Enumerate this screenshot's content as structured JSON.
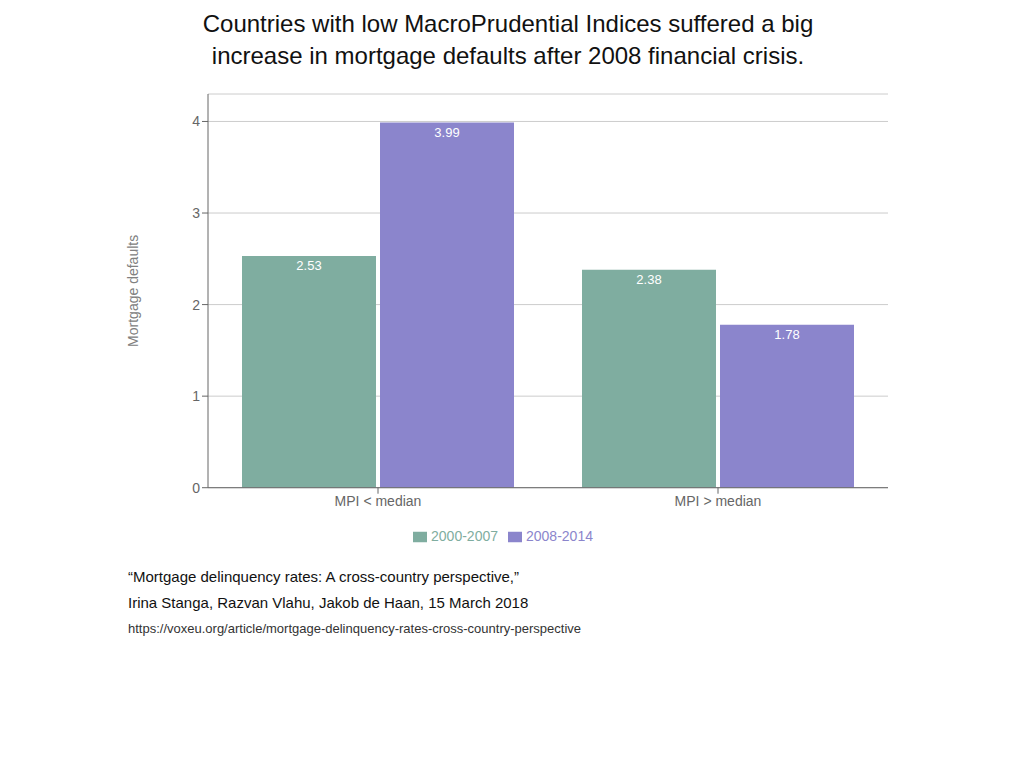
{
  "chart_data": {
    "type": "bar",
    "title": "Countries with low MacroPrudential Indices suffered a big\nincrease in mortgage defaults after 2008 financial crisis.",
    "categories": [
      "MPI < median",
      "MPI > median"
    ],
    "series": [
      {
        "name": "2000-2007",
        "color": "#7fada0",
        "values": [
          2.53,
          2.38
        ]
      },
      {
        "name": "2008-2014",
        "color": "#8b85cc",
        "values": [
          3.99,
          1.78
        ]
      }
    ],
    "ylabel": "Mortgage defaults",
    "ylim": [
      0,
      4.3
    ],
    "yticks": [
      0,
      1,
      2,
      3,
      4
    ],
    "grid": true,
    "legend": "bottom",
    "data_labels": true,
    "annotations": [
      "“Mortgage delinquency rates: A cross-country perspective,”",
      "Irina Stanga, Razvan Vlahu, Jakob de Haan, 15 March 2018",
      "https://voxeu.org/article/mortgage-delinquency-rates-cross-country-perspective"
    ]
  }
}
